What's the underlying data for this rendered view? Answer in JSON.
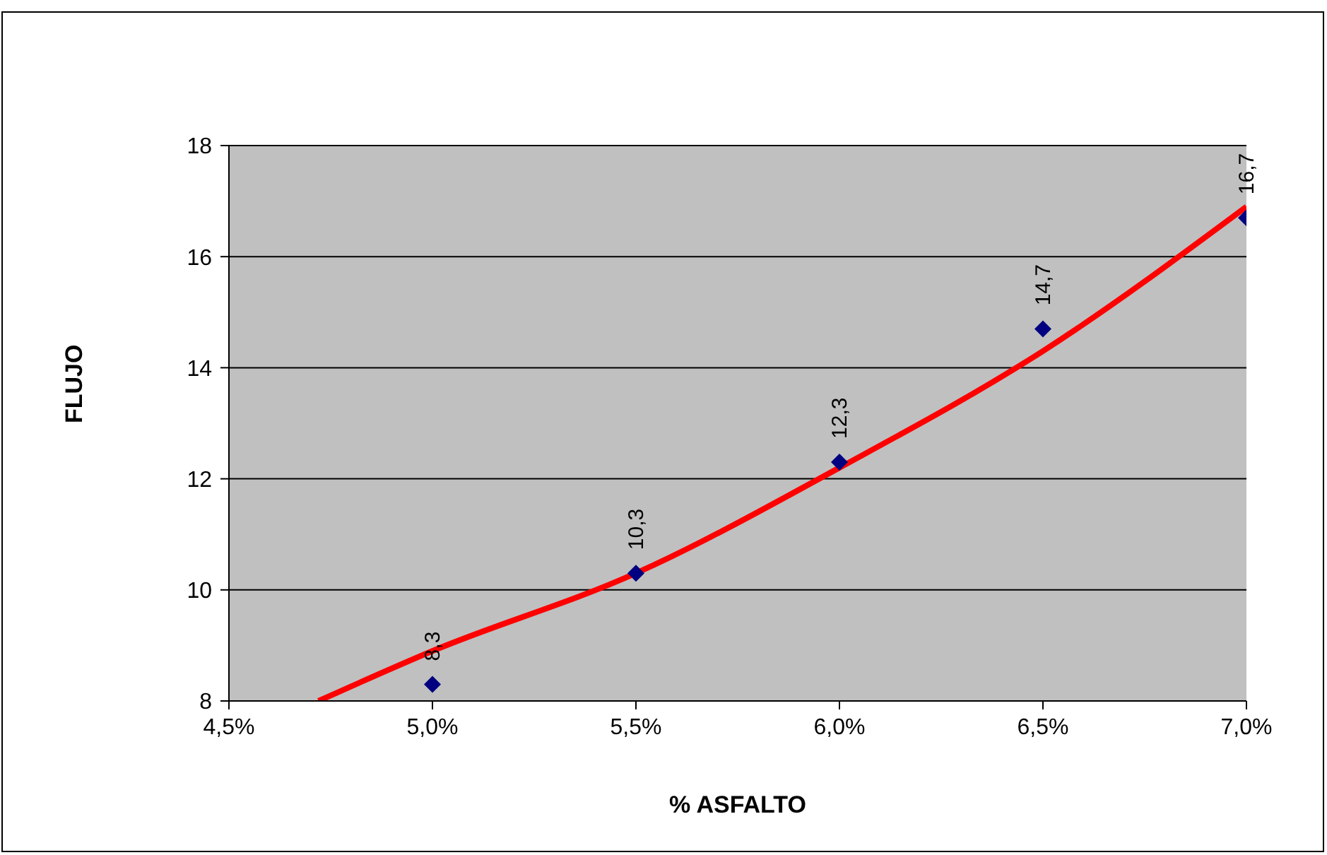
{
  "chart_data": {
    "type": "scatter",
    "xlabel": "% ASFALTO",
    "ylabel": "FLUJO",
    "x": [
      5.0,
      5.5,
      6.0,
      6.5,
      7.0
    ],
    "series": [
      {
        "color": "#000080",
        "marker": "diamond",
        "values": [
          8.3,
          10.3,
          12.3,
          14.7,
          16.7
        ],
        "value_labels": [
          "8,3",
          "10,3",
          "12,3",
          "14,7",
          "16,7"
        ]
      },
      {
        "type": "line",
        "color": "#ff0000",
        "marker": "none",
        "x": [
          4.72,
          5.0,
          5.5,
          6.0,
          6.5,
          7.0
        ],
        "values": [
          8.0,
          8.9,
          10.3,
          12.2,
          14.3,
          16.9
        ]
      }
    ],
    "xlim": [
      4.5,
      7.0
    ],
    "xticks": [
      {
        "value": 4.5,
        "label": "4,5%"
      },
      {
        "value": 5.0,
        "label": "5,0%"
      },
      {
        "value": 5.5,
        "label": "5,5%"
      },
      {
        "value": 6.0,
        "label": "6,0%"
      },
      {
        "value": 6.5,
        "label": "6,5%"
      },
      {
        "value": 7.0,
        "label": "7,0%"
      }
    ],
    "ylim": [
      8,
      18
    ],
    "yticks": [
      8,
      10,
      12,
      14,
      16,
      18
    ],
    "grid": "y",
    "legend": false
  }
}
